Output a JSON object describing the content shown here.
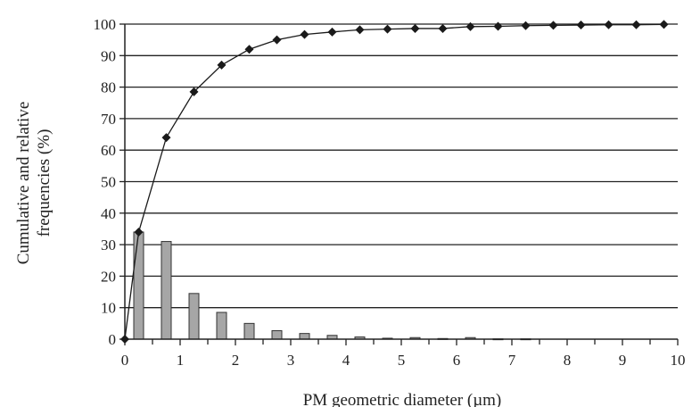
{
  "chart_data": {
    "type": "bar",
    "xlabel": "PM geometric diameter (µm)",
    "ylabel_lines": [
      "Cumulative and relative",
      "frequencies (%)"
    ],
    "xlim": [
      0,
      10
    ],
    "ylim": [
      0,
      100
    ],
    "x_ticks": [
      0,
      1,
      2,
      3,
      4,
      5,
      6,
      7,
      8,
      9,
      10
    ],
    "x_tick_labels": [
      "0",
      "1",
      "2",
      "3",
      "4",
      "5",
      "6",
      "7",
      "8",
      "9",
      "10"
    ],
    "y_ticks": [
      0,
      10,
      20,
      30,
      40,
      50,
      60,
      70,
      80,
      90,
      100
    ],
    "y_tick_labels": [
      "0",
      "10",
      "20",
      "30",
      "40",
      "50",
      "60",
      "70",
      "80",
      "90",
      "100"
    ],
    "grid": "horizontal",
    "colors": {
      "bar": "#a6a6a6",
      "line": "#1a1a1a",
      "grid": "#222222"
    },
    "series": [
      {
        "kind": "bar",
        "x": [
          0.25,
          0.75,
          1.25,
          1.75,
          2.25,
          2.75,
          3.25,
          3.75,
          4.25,
          4.75,
          5.25,
          5.75,
          6.25,
          6.75,
          7.25,
          7.75,
          8.25,
          8.75,
          9.25,
          9.75
        ],
        "values": [
          34,
          31,
          14.5,
          8.5,
          5,
          2.7,
          1.8,
          1.2,
          0.7,
          0.3,
          0.5,
          0.2,
          0.5,
          0.1,
          0.1,
          0,
          0,
          0,
          0,
          0
        ]
      },
      {
        "kind": "line",
        "x": [
          0,
          0.25,
          0.75,
          1.25,
          1.75,
          2.25,
          2.75,
          3.25,
          3.75,
          4.25,
          4.75,
          5.25,
          5.75,
          6.25,
          6.75,
          7.25,
          7.75,
          8.25,
          8.75,
          9.25,
          9.75
        ],
        "values": [
          0,
          34,
          64,
          78.5,
          87,
          92,
          95,
          96.7,
          97.5,
          98.2,
          98.4,
          98.6,
          98.6,
          99.2,
          99.3,
          99.5,
          99.6,
          99.7,
          99.8,
          99.8,
          99.9
        ]
      }
    ]
  }
}
